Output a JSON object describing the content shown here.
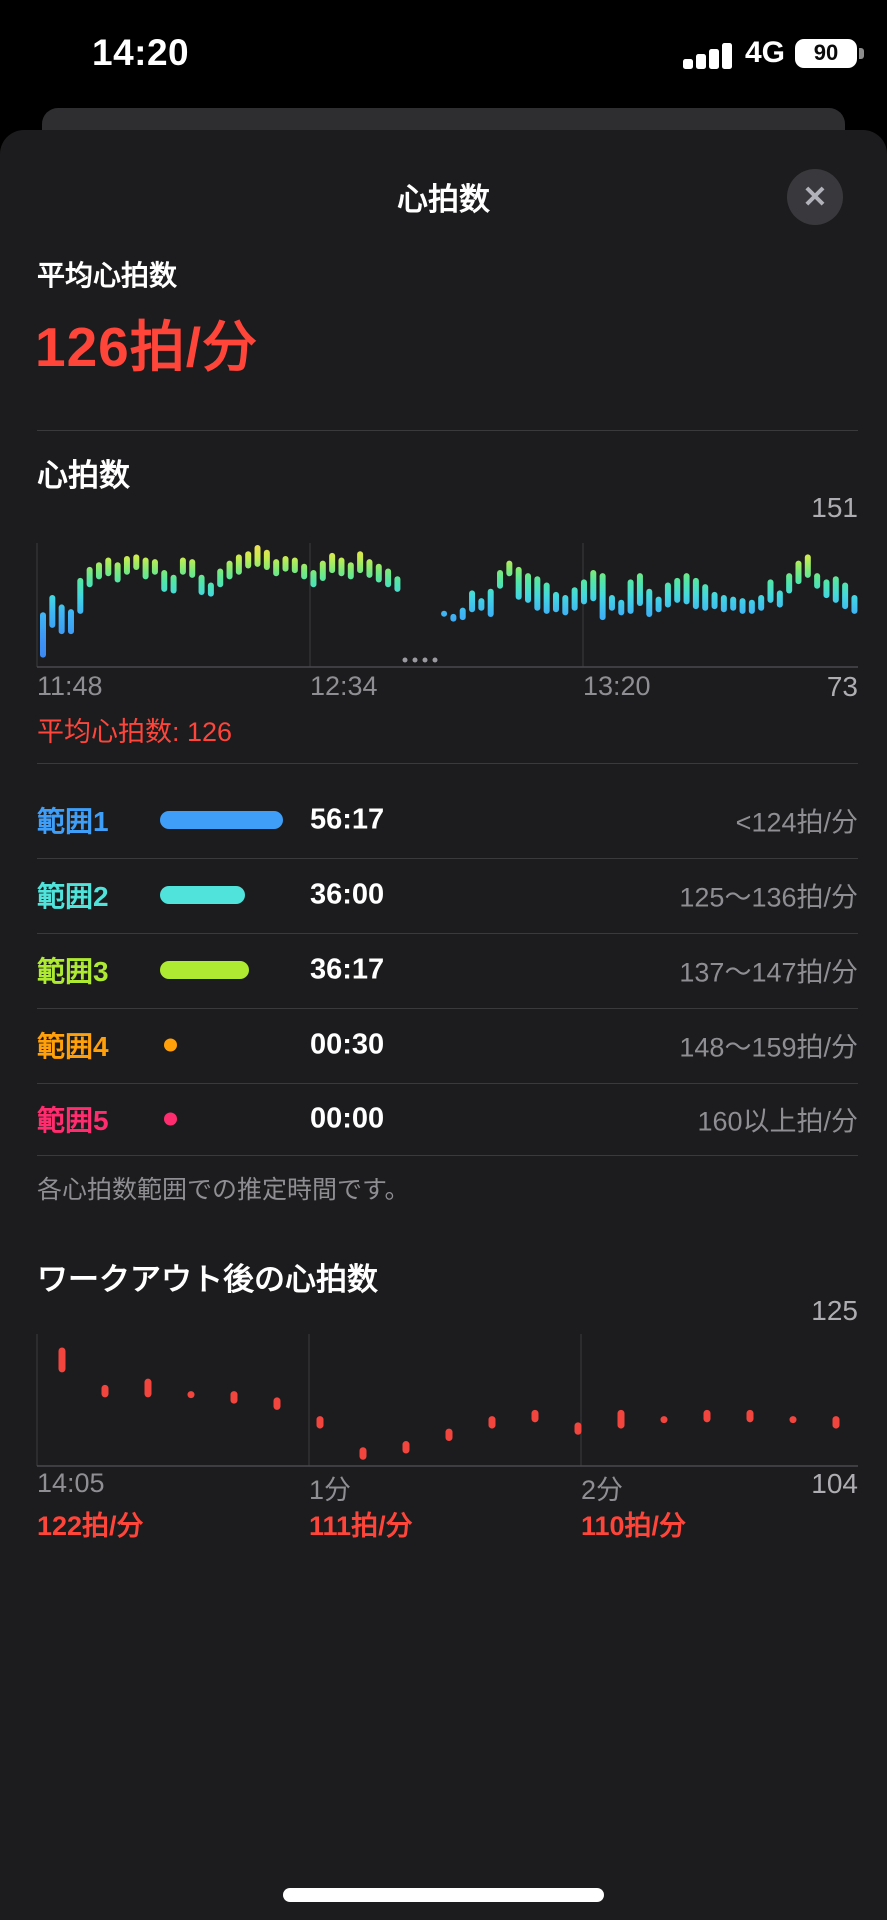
{
  "status_bar": {
    "time": "14:20",
    "network": "4G",
    "battery": "90"
  },
  "sheet": {
    "title": "心拍数",
    "close_icon": "✕"
  },
  "summary": {
    "label": "平均心拍数",
    "value": "126拍/分"
  },
  "zones": {
    "rows": [
      {
        "label": "範囲1",
        "duration": "56:17",
        "range": "<124拍/分",
        "color": "#3F9FF8",
        "marker": "pill",
        "marker_width": 123
      },
      {
        "label": "範囲2",
        "duration": "36:00",
        "range": "125〜136拍/分",
        "color": "#4FE3DB",
        "marker": "pill",
        "marker_width": 85
      },
      {
        "label": "範囲3",
        "duration": "36:17",
        "range": "137〜147拍/分",
        "color": "#AEEA32",
        "marker": "pill",
        "marker_width": 89
      },
      {
        "label": "範囲4",
        "duration": "00:30",
        "range": "148〜159拍/分",
        "color": "#FF9F0A",
        "marker": "dot",
        "marker_width": 13
      },
      {
        "label": "範囲5",
        "duration": "00:00",
        "range": "160以上拍/分",
        "color": "#FF2D6F",
        "marker": "dot",
        "marker_width": 13
      }
    ],
    "footnote": "各心拍数範囲での推定時間です。"
  },
  "chart_data": [
    {
      "type": "bar",
      "title": "心拍数",
      "unit": "拍/分",
      "ylim": [
        73,
        151
      ],
      "y_max_label": "151",
      "y_min_label": "73",
      "x_tick_labels": [
        "11:48",
        "12:34",
        "13:20"
      ],
      "avg_annotation": "平均心拍数: 126",
      "bars": [
        [
          79,
          108
        ],
        [
          98,
          119
        ],
        [
          94,
          113
        ],
        [
          94,
          110
        ],
        [
          107,
          130
        ],
        [
          124,
          137
        ],
        [
          129,
          140
        ],
        [
          131,
          143
        ],
        [
          127,
          140
        ],
        [
          132,
          144
        ],
        [
          135,
          145
        ],
        [
          129,
          143
        ],
        [
          132,
          142
        ],
        [
          121,
          135
        ],
        [
          120,
          132
        ],
        [
          132,
          143
        ],
        [
          130,
          142
        ],
        [
          119,
          132
        ],
        [
          118,
          127
        ],
        [
          124,
          136
        ],
        [
          129,
          141
        ],
        [
          132,
          145
        ],
        [
          136,
          147
        ],
        [
          137,
          151
        ],
        [
          135,
          148
        ],
        [
          131,
          142
        ],
        [
          134,
          144
        ],
        [
          133,
          143
        ],
        [
          129,
          139
        ],
        [
          124,
          135
        ],
        [
          128,
          141
        ],
        [
          133,
          146
        ],
        [
          131,
          143
        ],
        [
          129,
          140
        ],
        [
          133,
          147
        ],
        [
          130,
          142
        ],
        [
          127,
          139
        ],
        [
          124,
          136
        ],
        [
          121,
          131
        ],
        null,
        null,
        null,
        null,
        [
          106,
          109
        ],
        [
          102,
          107
        ],
        [
          103,
          111
        ],
        [
          108,
          122
        ],
        [
          109,
          117
        ],
        [
          105,
          123
        ],
        [
          123,
          135
        ],
        [
          131,
          141
        ],
        [
          116,
          137
        ],
        [
          114,
          133
        ],
        [
          109,
          131
        ],
        [
          107,
          127
        ],
        [
          108,
          121
        ],
        [
          106,
          119
        ],
        [
          109,
          124
        ],
        [
          113,
          129
        ],
        [
          115,
          135
        ],
        [
          103,
          133
        ],
        [
          109,
          119
        ],
        [
          106,
          116
        ],
        [
          107,
          129
        ],
        [
          112,
          133
        ],
        [
          105,
          123
        ],
        [
          108,
          118
        ],
        [
          111,
          127
        ],
        [
          114,
          130
        ],
        [
          113,
          133
        ],
        [
          110,
          130
        ],
        [
          109,
          126
        ],
        [
          110,
          121
        ],
        [
          108,
          119
        ],
        [
          109,
          118
        ],
        [
          107,
          117
        ],
        [
          107,
          116
        ],
        [
          109,
          119
        ],
        [
          114,
          129
        ],
        [
          111,
          122
        ],
        [
          120,
          133
        ],
        [
          126,
          141
        ],
        [
          130,
          145
        ],
        [
          123,
          133
        ],
        [
          117,
          129
        ],
        [
          114,
          131
        ],
        [
          110,
          127
        ],
        [
          107,
          119
        ]
      ]
    },
    {
      "type": "scatter",
      "title": "ワークアウト後の心拍数",
      "unit": "拍/分",
      "ylim": [
        104,
        125
      ],
      "y_max_label": "125",
      "y_min_label": "104",
      "x_tick_labels": [
        "14:05",
        "1分",
        "2分"
      ],
      "minute_captions": [
        "122拍/分",
        "111拍/分",
        "110拍/分"
      ],
      "points": [
        [
          119,
          123
        ],
        [
          115,
          117
        ],
        [
          115,
          118
        ],
        [
          115,
          116
        ],
        [
          114,
          116
        ],
        [
          113,
          115
        ],
        [
          110,
          112
        ],
        [
          105,
          107
        ],
        [
          106,
          108
        ],
        [
          108,
          110
        ],
        [
          110,
          112
        ],
        [
          111,
          113
        ],
        [
          109,
          111
        ],
        [
          110,
          113
        ],
        [
          111,
          112
        ],
        [
          111,
          113
        ],
        [
          111,
          113
        ],
        [
          111,
          112
        ],
        [
          110,
          112
        ]
      ]
    }
  ],
  "colors": {
    "accent_red": "#FF453A",
    "chart2_mark": "#F2453E",
    "text_gray": "#8E8E93",
    "minmax_gray": "#AEAEB2",
    "divider": "#3A3A3C",
    "sheet_bg": "#1C1C1E",
    "backcard_bg": "#2E2E31",
    "gridline": "#3C3C3F",
    "baseline": "#4A4A4E",
    "gap_dots": "#9A9AA0",
    "hr_gradient": [
      [
        "0",
        "#F0DF52"
      ],
      [
        "0.10",
        "#C9EC50"
      ],
      [
        "0.20",
        "#83E976"
      ],
      [
        "0.30",
        "#52E6A8"
      ],
      [
        "0.42",
        "#43D7E0"
      ],
      [
        "0.56",
        "#3FB5F4"
      ],
      [
        "0.78",
        "#3E93F5"
      ],
      [
        "1",
        "#3B82F0"
      ]
    ]
  }
}
